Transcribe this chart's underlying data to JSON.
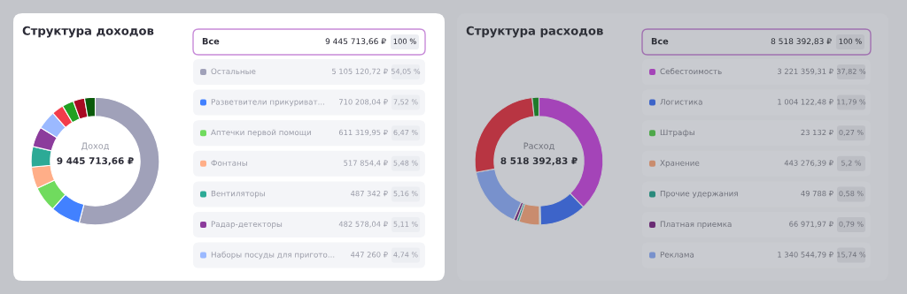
{
  "chart_data": [
    {
      "type": "donut",
      "title": "Структура доходов",
      "legend": "right",
      "categories": [
        "Остальные",
        "Разветвители прикуриват...",
        "Аптечки первой помощи",
        "Фонтаны",
        "Вентиляторы",
        "Радар-детекторы",
        "Наборы посуды для пригото...",
        null,
        null,
        null,
        null
      ],
      "values": [
        54.05,
        7.52,
        6.47,
        5.48,
        5.16,
        5.11,
        4.74,
        3.0,
        2.9,
        2.9,
        2.67
      ],
      "colors": [
        "#a0a1b9",
        "#4281ff",
        "#70db5e",
        "#ffae88",
        "#2caa96",
        "#8c3c9c",
        "#9bb9ff",
        "#f23c4a",
        "#22a022",
        "#a80a22",
        "#0a5a0a"
      ],
      "value_labels": [
        "54,05 %",
        "7,52 %",
        "6,47 %",
        "5,48 %",
        "5,16 %",
        "5,11 %",
        "4,74 %",
        null,
        null,
        null,
        null
      ],
      "annotations": [
        "Доход",
        "9 445 713,66 ₽",
        "Все",
        "9 445 713,66 ₽",
        "100 %",
        {
          "text": "5 105 120,72 ₽",
          "x": "Остальные"
        },
        {
          "text": "710 208,04 ₽",
          "x": "Разветвители прикуриват..."
        },
        {
          "text": "611 319,95 ₽",
          "x": "Аптечки первой помощи"
        },
        {
          "text": "517 854,4 ₽",
          "x": "Фонтаны"
        },
        {
          "text": "487 342 ₽",
          "x": "Вентиляторы"
        },
        {
          "text": "482 578,04 ₽",
          "x": "Радар-детекторы"
        },
        {
          "text": "447 260 ₽",
          "x": "Наборы посуды для пригото..."
        }
      ]
    },
    {
      "type": "donut",
      "title": "Структура расходов",
      "legend": "right",
      "categories": [
        "Себестоимость",
        "Логистика",
        "Штрафы",
        "Хранение",
        "Прочие удержания",
        "Платная приемка",
        "Реклама",
        null,
        null
      ],
      "values": [
        37.82,
        11.79,
        0.27,
        5.2,
        0.58,
        0.79,
        15.74,
        26.11,
        1.7
      ],
      "colors": [
        "#a444b8",
        "#3d64c9",
        "#4ea84a",
        "#c98c6e",
        "#2a8a7c",
        "#6a2c74",
        "#7891cc",
        "#b83542",
        "#1f7a2a"
      ],
      "value_labels": [
        "37,82 %",
        "11,79 %",
        "0,27 %",
        "5,2 %",
        "0,58 %",
        "0,79 %",
        "15,74 %",
        null,
        null
      ],
      "annotations": [
        "Расход",
        "8 518 392,83 ₽",
        "Все",
        "8 518 392,83 ₽",
        "100 %",
        {
          "text": "3 221 359,31 ₽",
          "x": "Себестоимость"
        },
        {
          "text": "1 004 122,48 ₽",
          "x": "Логистика"
        },
        {
          "text": "23 132 ₽",
          "x": "Штрафы"
        },
        {
          "text": "443 276,39 ₽",
          "x": "Хранение"
        },
        {
          "text": "49 788 ₽",
          "x": "Прочие удержания"
        },
        {
          "text": "66 971,97 ₽",
          "x": "Платная приемка"
        },
        {
          "text": "1 340 544,79 ₽",
          "x": "Реклама"
        }
      ]
    }
  ]
}
